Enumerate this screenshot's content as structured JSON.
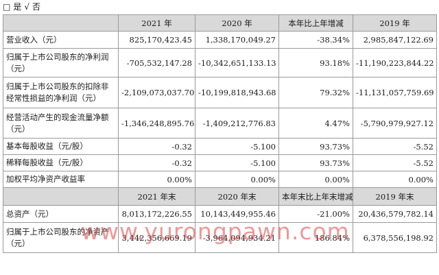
{
  "options_line": {
    "box": "□",
    "yes": "是",
    "check": "√",
    "no": "否"
  },
  "header1": [
    "",
    "2021 年",
    "2020 年",
    "本年比上年增减",
    "2019 年"
  ],
  "rows1": [
    {
      "label": "营业收入（元）",
      "v2021": "825,170,423.45",
      "v2020": "1,338,170,049.27",
      "change": "-38.34%",
      "v2019": "2,985,847,122.69"
    },
    {
      "label": "归属于上市公司股东的净利润（元）",
      "v2021": "-705,532,147.28",
      "v2020": "-10,342,651,133.13",
      "change": "93.18%",
      "v2019": "-11,190,223,844.22"
    },
    {
      "label": "归属于上市公司股东的扣除非经常性损益的净利润（元）",
      "v2021": "-2,109,073,037.70",
      "v2020": "-10,199,818,943.68",
      "change": "79.32%",
      "v2019": "-11,131,057,759.69"
    },
    {
      "label": "经营活动产生的现金流量净额（元）",
      "v2021": "-1,346,248,895.76",
      "v2020": "-1,409,212,776.83",
      "change": "4.47%",
      "v2019": "-5,790,979,927.12"
    },
    {
      "label": "基本每股收益（元/股）",
      "v2021": "-0.32",
      "v2020": "-5.100",
      "change": "93.73%",
      "v2019": "-5.52"
    },
    {
      "label": "稀释每股收益（元/股）",
      "v2021": "-0.32",
      "v2020": "-5.100",
      "change": "93.73%",
      "v2019": "-5.52"
    },
    {
      "label": "加权平均净资产收益率",
      "v2021": "0.00%",
      "v2020": "0.00%",
      "change": "0.00%",
      "v2019": "0.00%"
    }
  ],
  "header2": [
    "",
    "2021 年末",
    "2020 年末",
    "本年末比上年末增减",
    "2019 年末"
  ],
  "rows2": [
    {
      "label": "总资产（元）",
      "v2021": "8,013,172,226.55",
      "v2020": "10,143,449,955.46",
      "change": "-21.00%",
      "v2019": "20,436,579,782.14"
    },
    {
      "label": "归属于上市公司股东的净资产（元）",
      "v2021": "3,442,356,669.19",
      "v2020": "-3,964,094,934.21",
      "change": "186.84%",
      "v2019": "6,378,556,198.92"
    }
  ],
  "watermark": "www.yurongpawn.com",
  "colors": {
    "header_bg": "#d9d9d9",
    "border": "#999999",
    "watermark": "#dc4646"
  }
}
